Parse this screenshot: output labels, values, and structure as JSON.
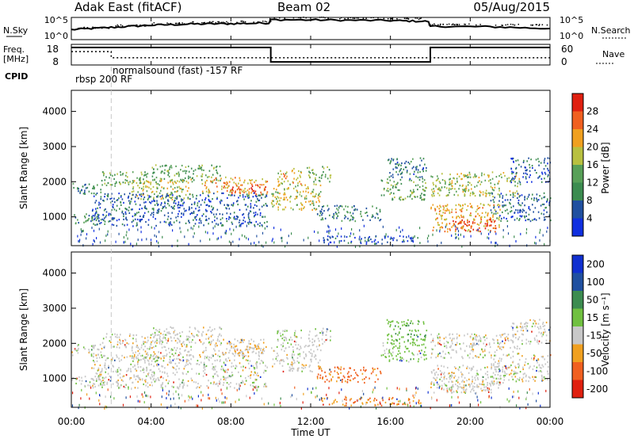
{
  "header": {
    "station": "Adak East (fitACF)",
    "beam": "Beam 02",
    "date": "05/Aug/2015"
  },
  "noise_panel": {
    "left_label": "N.Sky",
    "right_label": "N.Search",
    "ytick_top_left": "10^5",
    "ytick_bottom_left": "10^0",
    "ytick_top_right": "10^5",
    "ytick_bottom_right": "10^0"
  },
  "freq_panel": {
    "left_label_top": "Freq.",
    "left_label_unit": "[MHz]",
    "right_label": "Nave",
    "left_ticks": [
      "18",
      "8"
    ],
    "right_ticks": [
      "60",
      "0"
    ],
    "cpid_label": "CPID",
    "cpid_texts": [
      "rbsp 200 RF",
      "normalsound (fast) -157 RF"
    ]
  },
  "x_axis": {
    "label": "Time UT",
    "ticks": [
      "00:00",
      "04:00",
      "08:00",
      "12:00",
      "16:00",
      "20:00",
      "00:00"
    ]
  },
  "power_panel": {
    "ylabel": "Slant Range [km]",
    "yticks": [
      "1000",
      "2000",
      "3000",
      "4000"
    ],
    "colorbar_label": "Power [dB]",
    "colorbar_ticks": [
      "4",
      "8",
      "12",
      "16",
      "20",
      "24",
      "28"
    ],
    "colors": [
      "#1030e0",
      "#2050a0",
      "#3c8c50",
      "#58a058",
      "#b8c040",
      "#f0a020",
      "#f06020",
      "#e02010"
    ]
  },
  "velocity_panel": {
    "ylabel": "Slant Range [km]",
    "yticks": [
      "1000",
      "2000",
      "3000",
      "4000"
    ],
    "colorbar_label": "Velocity [m s⁻¹]",
    "colorbar_ticks": [
      "200",
      "100",
      "50",
      "15",
      "-15",
      "-50",
      "-100",
      "-200"
    ],
    "colors": [
      "#1030d0",
      "#2050a0",
      "#3c8c50",
      "#70c040",
      "#c8c8c8",
      "#f0a020",
      "#f06020",
      "#e02010"
    ]
  },
  "chart_data": {
    "type": "heatmap",
    "x_range_hours": [
      0,
      24
    ],
    "y_range_km": [
      180,
      4600
    ],
    "power_range_db": [
      0,
      30
    ],
    "velocity_range_ms": [
      -250,
      250
    ],
    "grid": false,
    "echo_regions": [
      {
        "t0": 0.0,
        "t1": 1.5,
        "r0": 1650,
        "r1": 2000,
        "power": 9,
        "vel": 0
      },
      {
        "t0": 0.0,
        "t1": 1.8,
        "r0": 800,
        "r1": 1100,
        "power": 10,
        "vel": 5
      },
      {
        "t0": 1.5,
        "t1": 4.5,
        "r0": 1900,
        "r1": 2300,
        "power": 14,
        "vel": 0
      },
      {
        "t0": 4.0,
        "t1": 7.5,
        "r0": 2000,
        "r1": 2500,
        "power": 13,
        "vel": 0
      },
      {
        "t0": 3.0,
        "t1": 6.0,
        "r0": 1500,
        "r1": 2100,
        "power": 18,
        "vel": 0
      },
      {
        "t0": 6.5,
        "t1": 9.8,
        "r0": 1700,
        "r1": 2150,
        "power": 22,
        "vel": -5
      },
      {
        "t0": 8.0,
        "t1": 9.8,
        "r0": 1650,
        "r1": 1950,
        "power": 28,
        "vel": -5
      },
      {
        "t0": 1.0,
        "t1": 9.8,
        "r0": 750,
        "r1": 1700,
        "power": 6,
        "vel": 0
      },
      {
        "t0": 10.0,
        "t1": 12.5,
        "r0": 1200,
        "r1": 2000,
        "power": 18,
        "vel": 0
      },
      {
        "t0": 10.3,
        "t1": 11.5,
        "r0": 1900,
        "r1": 2400,
        "power": 20,
        "vel": 10
      },
      {
        "t0": 11.8,
        "t1": 13.0,
        "r0": 2000,
        "r1": 2450,
        "power": 14,
        "vel": 0
      },
      {
        "t0": 12.3,
        "t1": 15.5,
        "r0": 900,
        "r1": 1350,
        "power": 9,
        "vel": -60
      },
      {
        "t0": 12.5,
        "t1": 17.5,
        "r0": 250,
        "r1": 480,
        "power": 5,
        "vel": -40
      },
      {
        "t0": 15.5,
        "t1": 17.8,
        "r0": 1500,
        "r1": 2100,
        "power": 13,
        "vel": 30
      },
      {
        "t0": 15.8,
        "t1": 17.8,
        "r0": 2100,
        "r1": 2700,
        "power": 8,
        "vel": 40
      },
      {
        "t0": 18.0,
        "t1": 22.5,
        "r0": 1600,
        "r1": 2300,
        "power": 17,
        "vel": 0
      },
      {
        "t0": 18.0,
        "t1": 21.5,
        "r0": 600,
        "r1": 1400,
        "power": 21,
        "vel": 0
      },
      {
        "t0": 19.0,
        "t1": 21.3,
        "r0": 600,
        "r1": 950,
        "power": 28,
        "vel": 0
      },
      {
        "t0": 21.0,
        "t1": 24.0,
        "r0": 900,
        "r1": 1700,
        "power": 7,
        "vel": 0
      },
      {
        "t0": 22.0,
        "t1": 24.0,
        "r0": 2000,
        "r1": 2700,
        "power": 6,
        "vel": 0
      }
    ],
    "nsky_level": [
      {
        "t": 0.0,
        "v": 0.45
      },
      {
        "t": 2.0,
        "v": 0.55
      },
      {
        "t": 4.0,
        "v": 0.65
      },
      {
        "t": 6.0,
        "v": 0.7
      },
      {
        "t": 8.0,
        "v": 0.72
      },
      {
        "t": 9.9,
        "v": 0.75
      },
      {
        "t": 10.0,
        "v": 0.9
      },
      {
        "t": 13.0,
        "v": 0.88
      },
      {
        "t": 16.0,
        "v": 0.86
      },
      {
        "t": 17.9,
        "v": 0.82
      },
      {
        "t": 18.0,
        "v": 0.6
      },
      {
        "t": 21.0,
        "v": 0.58
      },
      {
        "t": 24.0,
        "v": 0.5
      }
    ],
    "freq_steps": [
      {
        "t0": 0.0,
        "t1": 10.0,
        "v": 0.85
      },
      {
        "t0": 10.0,
        "t1": 18.0,
        "v": 0.15
      },
      {
        "t0": 18.0,
        "t1": 24.0,
        "v": 0.85
      }
    ],
    "nave_steps": [
      {
        "t0": 0.0,
        "t1": 2.0,
        "v": 0.65
      },
      {
        "t0": 2.0,
        "t1": 18.0,
        "v": 0.35
      },
      {
        "t0": 18.0,
        "t1": 24.0,
        "v": 0.35
      }
    ],
    "cpid_change_hour": 2.0
  }
}
